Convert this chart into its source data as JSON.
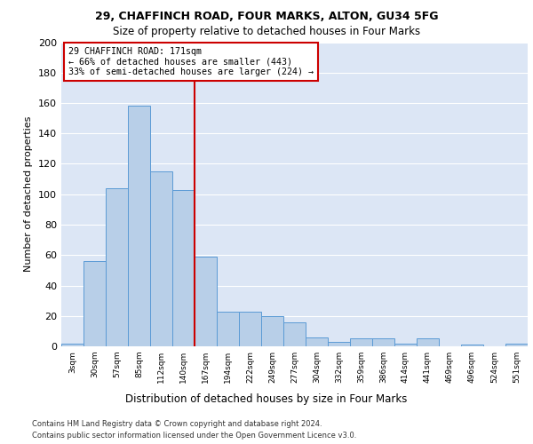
{
  "title1": "29, CHAFFINCH ROAD, FOUR MARKS, ALTON, GU34 5FG",
  "title2": "Size of property relative to detached houses in Four Marks",
  "xlabel": "Distribution of detached houses by size in Four Marks",
  "ylabel": "Number of detached properties",
  "footnote1": "Contains HM Land Registry data © Crown copyright and database right 2024.",
  "footnote2": "Contains public sector information licensed under the Open Government Licence v3.0.",
  "annotation_line1": "29 CHAFFINCH ROAD: 171sqm",
  "annotation_line2": "← 66% of detached houses are smaller (443)",
  "annotation_line3": "33% of semi-detached houses are larger (224) →",
  "bar_values": [
    2,
    56,
    104,
    158,
    115,
    103,
    59,
    23,
    23,
    20,
    16,
    6,
    3,
    5,
    5,
    2,
    5,
    0,
    1,
    0,
    2
  ],
  "bin_labels": [
    "3sqm",
    "30sqm",
    "57sqm",
    "85sqm",
    "112sqm",
    "140sqm",
    "167sqm",
    "194sqm",
    "222sqm",
    "249sqm",
    "277sqm",
    "304sqm",
    "332sqm",
    "359sqm",
    "386sqm",
    "414sqm",
    "441sqm",
    "469sqm",
    "496sqm",
    "524sqm",
    "551sqm"
  ],
  "bar_color": "#b8cfe8",
  "bar_edge_color": "#5b9bd5",
  "vline_x": 5.5,
  "vline_color": "#cc0000",
  "annotation_box_color": "#cc0000",
  "background_color": "#dce6f5",
  "grid_color": "#ffffff",
  "ylim": [
    0,
    200
  ],
  "yticks": [
    0,
    20,
    40,
    60,
    80,
    100,
    120,
    140,
    160,
    180,
    200
  ]
}
